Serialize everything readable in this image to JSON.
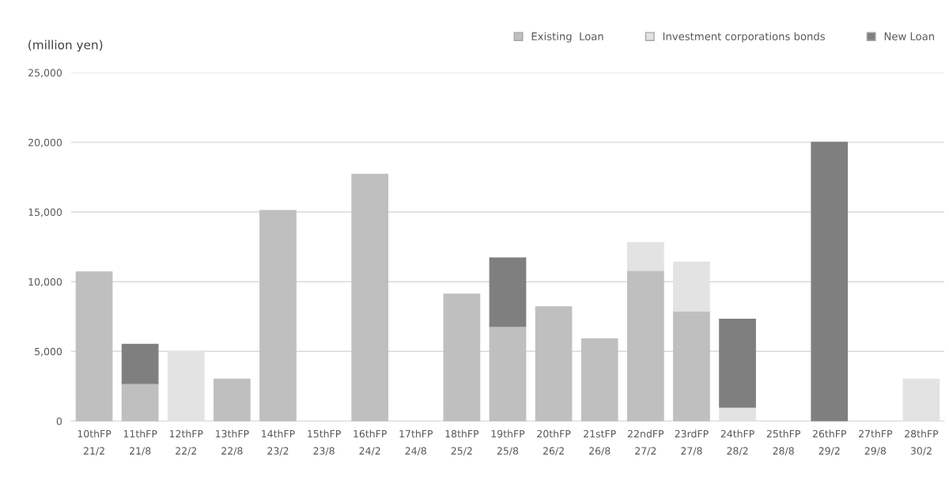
{
  "chart_data": {
    "type": "bar",
    "stacked": true,
    "ylabel": "(million yen)",
    "categories": [
      "10thFP\n21/2",
      "11thFP\n21/8",
      "12thFP\n22/2",
      "13thFP\n22/8",
      "14thFP\n23/2",
      "15thFP\n23/8",
      "16thFP\n24/2",
      "17thFP\n24/8",
      "18thFP\n25/2",
      "19thFP\n25/8",
      "20thFP\n26/2",
      "21stFP\n26/8",
      "22ndFP\n27/2",
      "23rdFP\n27/8",
      "24thFP\n28/2",
      "25thFP\n28/8",
      "26thFP\n29/2",
      "27thFP\n29/8",
      "28thFP\n30/2"
    ],
    "series": [
      {
        "name": "Existing  Loan",
        "color": "#bfbfbf",
        "values": [
          10700,
          2700,
          0,
          3000,
          15100,
          0,
          17700,
          0,
          9100,
          6800,
          8200,
          5900,
          10800,
          7900,
          0,
          0,
          0,
          0,
          0
        ]
      },
      {
        "name": "Investment corporations bonds",
        "color": "#e3e3e3",
        "values": [
          0,
          0,
          5000,
          0,
          0,
          0,
          0,
          0,
          0,
          0,
          0,
          0,
          2000,
          3500,
          1000,
          0,
          0,
          0,
          3000
        ]
      },
      {
        "name": "New Loan",
        "color": "#7f7f7f",
        "values": [
          0,
          2800,
          0,
          0,
          0,
          0,
          0,
          0,
          0,
          4900,
          0,
          0,
          0,
          0,
          6300,
          0,
          20000,
          0,
          0
        ]
      }
    ],
    "ylim": [
      0,
      25000
    ],
    "yticks": [
      {
        "value": 0,
        "label": "0"
      },
      {
        "value": 5000,
        "label": "5,000"
      },
      {
        "value": 10000,
        "label": "10,000"
      },
      {
        "value": 15000,
        "label": "15,000"
      },
      {
        "value": 20000,
        "label": "20,000"
      },
      {
        "value": 25000,
        "label": "25,000"
      }
    ],
    "grid": "y",
    "legend": "top right"
  }
}
